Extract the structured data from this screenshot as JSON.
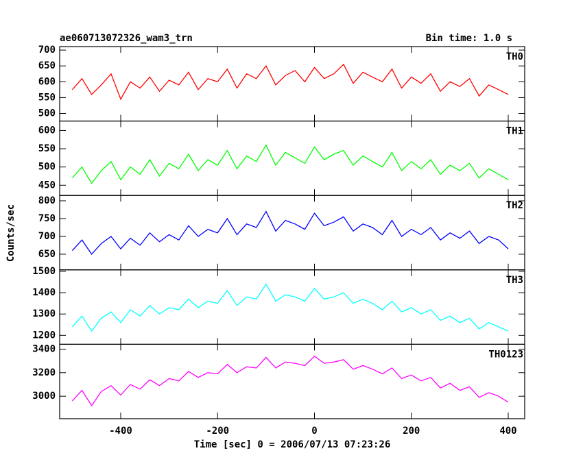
{
  "chart_data": {
    "type": "line",
    "title": "ae060713072326_wam3_trn",
    "subtitle": "Bin time: 1.0 s",
    "ylabel": "Counts/sec",
    "xlabel": "Time [sec] 0 = 2006/07/13 07:23:26",
    "xlim": [
      -526,
      434
    ],
    "xticks": [
      -400,
      -200,
      0,
      200,
      400
    ],
    "x": [
      -500,
      -480,
      -460,
      -440,
      -420,
      -400,
      -380,
      -360,
      -340,
      -320,
      -300,
      -280,
      -260,
      -240,
      -220,
      -200,
      -180,
      -160,
      -140,
      -120,
      -100,
      -80,
      -60,
      -40,
      -20,
      0,
      20,
      40,
      60,
      80,
      100,
      120,
      140,
      160,
      180,
      200,
      220,
      240,
      260,
      280,
      300,
      320,
      340,
      360,
      380,
      400
    ],
    "series": [
      {
        "name": "TH0",
        "color": "#ff0000",
        "ylim": [
          476,
          711
        ],
        "yticks": [
          500,
          550,
          600,
          650,
          700
        ],
        "values": [
          575,
          610,
          560,
          590,
          625,
          545,
          600,
          580,
          615,
          570,
          605,
          590,
          630,
          575,
          610,
          600,
          640,
          580,
          625,
          610,
          650,
          590,
          620,
          635,
          600,
          645,
          610,
          625,
          655,
          595,
          630,
          615,
          600,
          640,
          580,
          615,
          595,
          625,
          570,
          600,
          585,
          610,
          555,
          590,
          575,
          560
        ]
      },
      {
        "name": "TH1",
        "color": "#00ff00",
        "ylim": [
          422,
          626
        ],
        "yticks": [
          450,
          500,
          550,
          600
        ],
        "values": [
          470,
          500,
          455,
          490,
          515,
          465,
          500,
          480,
          520,
          475,
          510,
          495,
          535,
          490,
          520,
          505,
          545,
          495,
          530,
          515,
          560,
          505,
          540,
          525,
          510,
          555,
          520,
          535,
          545,
          505,
          530,
          515,
          500,
          540,
          490,
          515,
          495,
          520,
          480,
          505,
          490,
          510,
          470,
          495,
          480,
          465
        ]
      },
      {
        "name": "TH2",
        "color": "#0000ff",
        "ylim": [
          606,
          815
        ],
        "yticks": [
          650,
          700,
          750,
          800
        ],
        "values": [
          660,
          690,
          650,
          680,
          700,
          665,
          695,
          675,
          710,
          685,
          705,
          690,
          730,
          700,
          720,
          710,
          750,
          705,
          735,
          725,
          770,
          715,
          745,
          735,
          720,
          765,
          730,
          740,
          755,
          715,
          735,
          725,
          705,
          745,
          700,
          720,
          705,
          725,
          690,
          710,
          695,
          715,
          680,
          700,
          690,
          665
        ]
      },
      {
        "name": "TH3",
        "color": "#00ffff",
        "ylim": [
          1158,
          1507
        ],
        "yticks": [
          1200,
          1300,
          1400,
          1500
        ],
        "values": [
          1240,
          1290,
          1220,
          1280,
          1310,
          1260,
          1320,
          1290,
          1340,
          1300,
          1330,
          1320,
          1370,
          1330,
          1360,
          1350,
          1410,
          1340,
          1380,
          1370,
          1440,
          1360,
          1390,
          1380,
          1360,
          1420,
          1370,
          1380,
          1400,
          1350,
          1370,
          1350,
          1320,
          1360,
          1310,
          1330,
          1300,
          1320,
          1270,
          1290,
          1260,
          1280,
          1230,
          1260,
          1240,
          1220
        ]
      },
      {
        "name": "TH0123",
        "color": "#ff00ff",
        "ylim": [
          2809,
          3441
        ],
        "yticks": [
          3000,
          3200,
          3400
        ],
        "values": [
          2960,
          3050,
          2920,
          3040,
          3090,
          3010,
          3100,
          3060,
          3140,
          3090,
          3150,
          3130,
          3210,
          3160,
          3200,
          3190,
          3270,
          3200,
          3250,
          3240,
          3330,
          3240,
          3290,
          3280,
          3260,
          3340,
          3280,
          3290,
          3310,
          3230,
          3260,
          3230,
          3190,
          3240,
          3150,
          3180,
          3130,
          3160,
          3070,
          3110,
          3050,
          3080,
          2990,
          3030,
          3000,
          2950
        ]
      }
    ]
  }
}
